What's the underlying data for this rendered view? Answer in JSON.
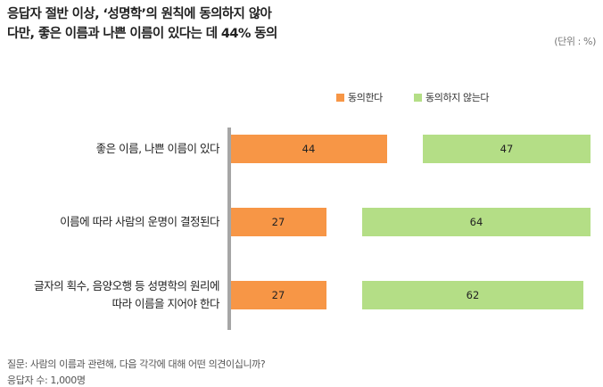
{
  "chart_data": {
    "type": "bar",
    "orientation": "horizontal",
    "title_lines": [
      "응답자 절반 이상, ‘성명학’의 원칙에 동의하지 않아",
      "다만, 좋은 이름과 나쁜 이름이 있다는 데 44% 동의"
    ],
    "unit": "(단위 : %)",
    "categories": [
      [
        "좋은 이름, 나쁜 이름이 있다"
      ],
      [
        "이름에 따라 사람의 운명이 결정된다"
      ],
      [
        "글자의 획수, 음양오행 등 성명학의 원리에",
        "따라 이름을 지어야 한다"
      ]
    ],
    "series": [
      {
        "name": "동의한다",
        "color": "#f79646",
        "values": [
          44,
          27,
          27
        ]
      },
      {
        "name": "동의하지 않는다",
        "color": "#b4de86",
        "values": [
          47,
          64,
          62
        ]
      }
    ],
    "xlim": [
      0,
      100
    ],
    "legend": "top-right",
    "grid": false
  },
  "footnotes": {
    "question": "질문:  사람의 이름과 관련해, 다음 각각에 대해 어떤 의견이십니까?",
    "respondents": "응답자 수: 1,000명"
  }
}
